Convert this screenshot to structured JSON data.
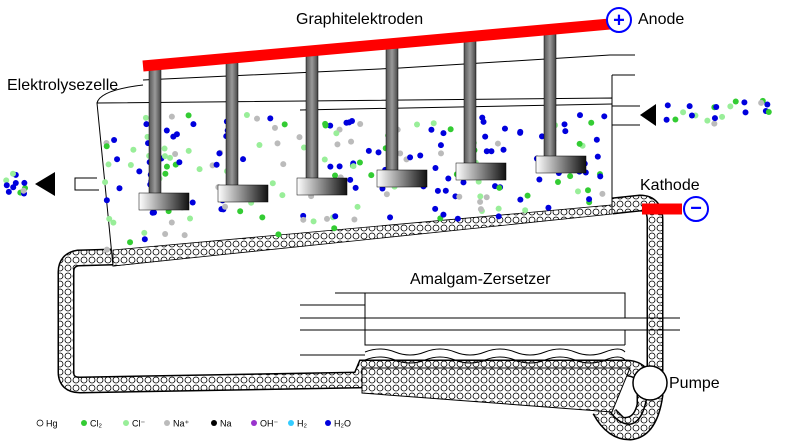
{
  "labels": {
    "electrodes": "Graphitelektroden",
    "anode": "Anode",
    "anode_sign": "+",
    "cell": "Elektrolysezelle",
    "cathode": "Kathode",
    "cathode_sign": "−",
    "decomposer": "Amalgam-Zersetzer",
    "pump": "Pumpe"
  },
  "legend": [
    {
      "label": "Hg"
    },
    {
      "label": "Cl₂"
    },
    {
      "label": "Cl⁻"
    },
    {
      "label": "Na⁺"
    },
    {
      "label": "Na"
    },
    {
      "label": "OH⁻"
    },
    {
      "label": "H₂"
    },
    {
      "label": "H₂O"
    }
  ]
}
